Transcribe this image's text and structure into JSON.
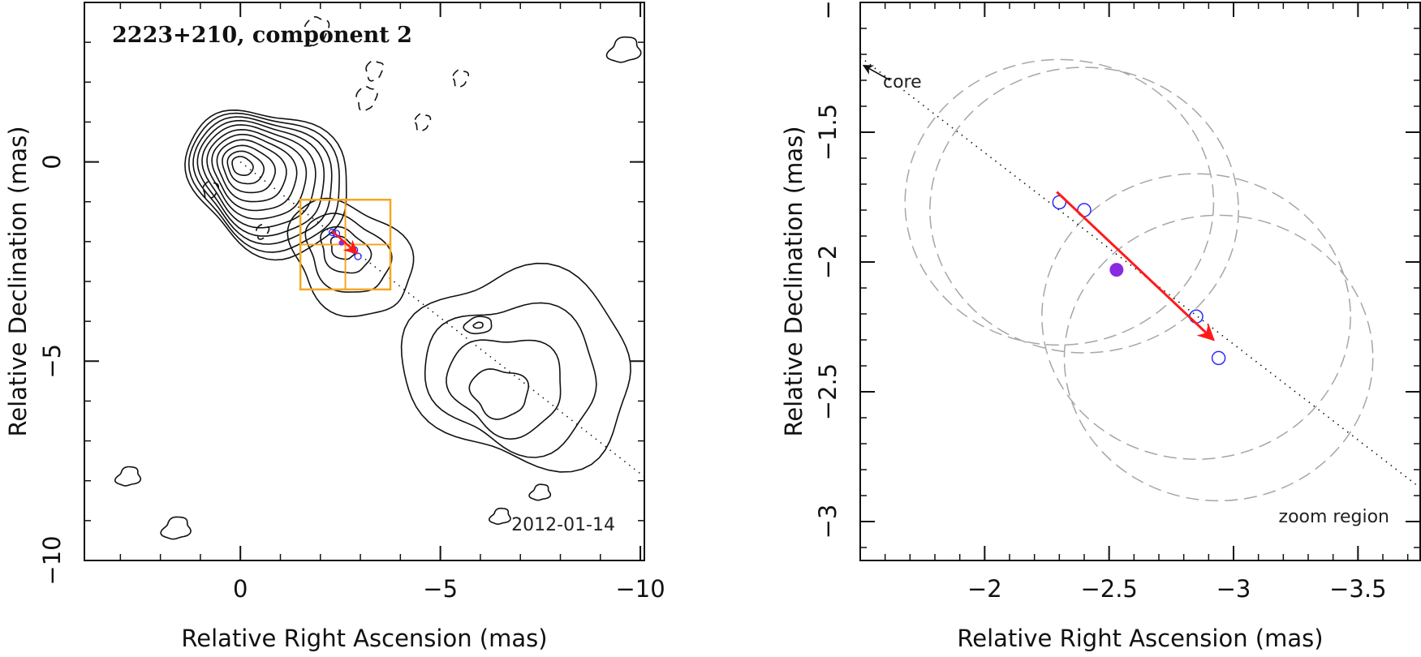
{
  "chart_data": [
    {
      "type": "contour",
      "title": "2223+210, component 2",
      "xlabel": "Relative Right Ascension (mas)",
      "ylabel": "Relative Declination (mas)",
      "xlim": [
        3.9,
        -10.1
      ],
      "ylim": [
        -10,
        4
      ],
      "x_ticks": [
        0,
        -5,
        -10
      ],
      "x_tick_labels": [
        "0",
        "−5",
        "−10"
      ],
      "y_ticks": [
        0,
        -5,
        -10
      ],
      "y_tick_labels": [
        "0",
        "−5",
        "−10"
      ],
      "epoch_label": "2012-01-14",
      "core_position": {
        "x": 0,
        "y": 0
      },
      "jet_axis_end": {
        "x": -10.1,
        "y": -7.9
      },
      "zoom_region": {
        "x": [
          -1.5,
          -3.75
        ],
        "y": [
          -0.95,
          -3.2
        ]
      },
      "contours": [
        {
          "name": "core",
          "x": 0.05,
          "y": -0.05,
          "radii": [
            0.22,
            0.38,
            0.55,
            0.72,
            0.88,
            1.03,
            1.18,
            1.32,
            1.45,
            1.58,
            1.7
          ]
        },
        {
          "name": "jet-knot-2",
          "x": -2.5,
          "y": -2.1,
          "radii": [
            0.25,
            0.5,
            0.85,
            1.25
          ]
        },
        {
          "name": "outer-lobe",
          "x": -6.3,
          "y": -6.0,
          "radii": [
            0.6,
            1.2,
            1.8,
            2.4
          ]
        },
        {
          "name": "lobe-peak",
          "x": -5.95,
          "y": -4.1,
          "radii": [
            0.12,
            0.35
          ]
        }
      ],
      "component_positions": [
        {
          "x": -2.3,
          "y": -1.77,
          "style": "open"
        },
        {
          "x": -2.4,
          "y": -1.8,
          "style": "open"
        },
        {
          "x": -2.53,
          "y": -2.03,
          "style": "filled"
        },
        {
          "x": -2.85,
          "y": -2.21,
          "style": "open"
        },
        {
          "x": -2.94,
          "y": -2.37,
          "style": "open"
        }
      ],
      "velocity_arrow": {
        "from": {
          "x": -2.29,
          "y": -1.73
        },
        "to": {
          "x": -2.92,
          "y": -2.3
        }
      },
      "colors": {
        "contour": "#111111",
        "zoom_box": "#f5a623",
        "arrow": "#ff1a1a",
        "open_marker": "#2a2aff",
        "filled_marker": "#8a2be2"
      }
    },
    {
      "type": "scatter",
      "xlabel": "Relative Right Ascension (mas)",
      "ylabel": "Relative Declination (mas)",
      "xlim": [
        -1.5,
        -3.75
      ],
      "ylim": [
        -3.15,
        -1.0
      ],
      "x_ticks": [
        -2,
        -2.5,
        -3,
        -3.5
      ],
      "x_tick_labels": [
        "−2",
        "−2.5",
        "−3",
        "−3.5"
      ],
      "y_ticks": [
        -1,
        -1.5,
        -2,
        -2.5,
        -3
      ],
      "y_tick_labels": [
        "−1",
        "−1.5",
        "−2",
        "−2.5",
        "−3"
      ],
      "core_label": "core",
      "zoom_label": "zoom region",
      "core_arrow": {
        "from": {
          "x": -1.62,
          "y": -1.3
        },
        "to": {
          "x": -1.5,
          "y": -1.23
        }
      },
      "jet_axis": {
        "from": {
          "x": -1.5,
          "y": -1.21
        },
        "to": {
          "x": -3.75,
          "y": -2.87
        }
      },
      "points": [
        {
          "x": -2.3,
          "y": -1.77,
          "style": "open"
        },
        {
          "x": -2.4,
          "y": -1.8,
          "style": "open"
        },
        {
          "x": -2.53,
          "y": -2.03,
          "style": "filled"
        },
        {
          "x": -2.85,
          "y": -2.21,
          "style": "open"
        },
        {
          "x": -2.94,
          "y": -2.37,
          "style": "open"
        }
      ],
      "velocity_arrow": {
        "from": {
          "x": -2.29,
          "y": -1.73
        },
        "to": {
          "x": -2.92,
          "y": -2.3
        }
      },
      "uncertainty_ellipses": [
        {
          "cx": -2.3,
          "cy": -1.77,
          "rx": 0.62,
          "ry": 0.55
        },
        {
          "cx": -2.4,
          "cy": -1.8,
          "rx": 0.62,
          "ry": 0.55
        },
        {
          "cx": -2.85,
          "cy": -2.21,
          "rx": 0.62,
          "ry": 0.55
        },
        {
          "cx": -2.94,
          "cy": -2.37,
          "rx": 0.62,
          "ry": 0.55
        }
      ],
      "colors": {
        "ellipse": "#a6a6a6",
        "arrow": "#ff1a1a",
        "open_marker": "#2a2aff",
        "filled_marker": "#8a2be2"
      }
    }
  ]
}
